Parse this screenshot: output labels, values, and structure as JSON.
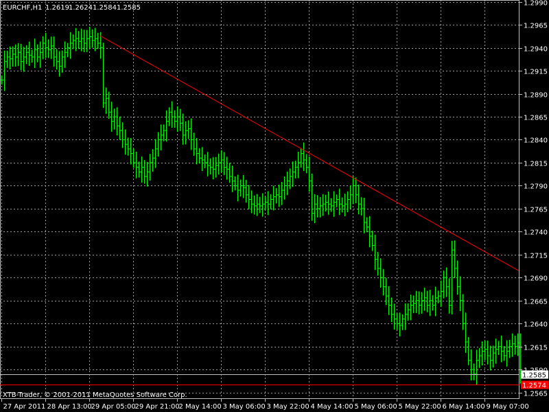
{
  "colors": {
    "background": "#000000",
    "candles": "#00ff00",
    "grid": "#c0c0c0",
    "text": "#ffffff",
    "trendline": "#ff0000",
    "bid_line": "#c0c0c0",
    "red_level": "#ff0000"
  },
  "chart_data": {
    "type": "candlestick",
    "symbol_timeframe": "EURCHF,H1",
    "ohlc_header": [
      "1.2619",
      "1.2624",
      "1.2584",
      "1.2585"
    ],
    "watermark": "XTB-Trader, © 2001-2011 MetaQuotes Software Corp.",
    "ylim": [
      1.2558,
      1.2992
    ],
    "y_ticks": [
      "1.2990",
      "1.2965",
      "1.2940",
      "1.2915",
      "1.2890",
      "1.2865",
      "1.2840",
      "1.2815",
      "1.2790",
      "1.2765",
      "1.2740",
      "1.2715",
      "1.2690",
      "1.2665",
      "1.2640",
      "1.2615",
      "1.2590",
      "1.2565"
    ],
    "x_ticks": [
      "27 Apr 2011",
      "28 Apr 13:00",
      "29 Apr 05:00",
      "29 Apr 21:00",
      "2 May 14:00",
      "3 May 06:00",
      "3 May 22:00",
      "4 May 14:00",
      "5 May 06:00",
      "5 May 22:00",
      "6 May 14:00",
      "9 May 07:00"
    ],
    "current_price": {
      "label": "1.2585",
      "value": 1.2585
    },
    "red_level": {
      "label": "1.2574",
      "value": 1.2574
    },
    "trendline": {
      "start": {
        "bar": 36,
        "price": 1.2953
      },
      "end": {
        "bar": 189,
        "price": 1.2697
      }
    },
    "closes": [
      1.2905,
      1.2925,
      1.293,
      1.2928,
      1.2933,
      1.293,
      1.2935,
      1.2925,
      1.293,
      1.2935,
      1.2932,
      1.293,
      1.2938,
      1.293,
      1.2935,
      1.2945,
      1.294,
      1.2938,
      1.2942,
      1.293,
      1.2925,
      1.292,
      1.293,
      1.2935,
      1.294,
      1.2945,
      1.2948,
      1.295,
      1.2947,
      1.295,
      1.2945,
      1.295,
      1.2952,
      1.2948,
      1.295,
      1.2945,
      1.294,
      1.288,
      1.2885,
      1.287,
      1.286,
      1.2865,
      1.2855,
      1.285,
      1.284,
      1.2835,
      1.283,
      1.2825,
      1.2815,
      1.281,
      1.2805,
      1.281,
      1.28,
      1.2805,
      1.2815,
      1.282,
      1.283,
      1.284,
      1.2845,
      1.285,
      1.286,
      1.287,
      1.2865,
      1.286,
      1.2865,
      1.2858,
      1.2845,
      1.285,
      1.2852,
      1.284,
      1.283,
      1.2825,
      1.282,
      1.2818,
      1.2815,
      1.2812,
      1.281,
      1.2808,
      1.2812,
      1.2815,
      1.2818,
      1.281,
      1.2808,
      1.28,
      1.2795,
      1.279,
      1.2785,
      1.279,
      1.2788,
      1.278,
      1.2775,
      1.277,
      1.2768,
      1.277,
      1.2768,
      1.277,
      1.2772,
      1.277,
      1.2775,
      1.2778,
      1.278,
      1.2778,
      1.2785,
      1.279,
      1.2795,
      1.28,
      1.2805,
      1.281,
      1.2815,
      1.2825,
      1.2818,
      1.281,
      1.2795,
      1.276,
      1.277,
      1.2765,
      1.2768,
      1.277,
      1.2772,
      1.277,
      1.2768,
      1.2772,
      1.2775,
      1.277,
      1.2768,
      1.277,
      1.2775,
      1.278,
      1.279,
      1.278,
      1.277,
      1.2765,
      1.275,
      1.2745,
      1.2735,
      1.2725,
      1.271,
      1.27,
      1.269,
      1.268,
      1.267,
      1.266,
      1.265,
      1.2645,
      1.264,
      1.2638,
      1.2645,
      1.265,
      1.2655,
      1.266,
      1.2662,
      1.2665,
      1.266,
      1.2665,
      1.2668,
      1.266,
      1.2665,
      1.266,
      1.2668,
      1.267,
      1.2675,
      1.269,
      1.268,
      1.266,
      1.272,
      1.27,
      1.268,
      1.2665,
      1.264,
      1.262,
      1.26,
      1.259,
      1.2585,
      1.26,
      1.2605,
      1.261,
      1.2612,
      1.2605,
      1.26,
      1.2608,
      1.2612,
      1.2615,
      1.261,
      1.2605,
      1.261,
      1.2615,
      1.2618,
      1.2615,
      1.2619,
      1.2585
    ]
  }
}
